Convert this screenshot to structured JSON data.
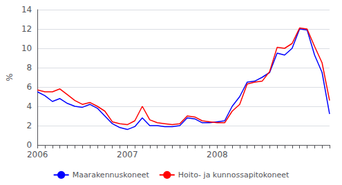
{
  "chart_data": {
    "type": "line",
    "ylabel": "%",
    "categories": [
      "2006",
      null,
      null,
      null,
      null,
      null,
      null,
      null,
      null,
      null,
      null,
      null,
      "2007",
      null,
      null,
      null,
      null,
      null,
      null,
      null,
      null,
      null,
      null,
      null,
      "2008",
      null,
      null,
      null,
      null,
      null,
      null,
      null,
      null,
      null,
      null,
      null,
      null,
      null,
      null,
      null
    ],
    "series": [
      {
        "name": "Maarakennuskoneet",
        "color": "#0000FF",
        "values": [
          5.5,
          5.1,
          4.5,
          4.8,
          4.3,
          4.0,
          3.9,
          4.2,
          3.8,
          3.0,
          2.2,
          1.8,
          1.6,
          1.9,
          2.8,
          2.0,
          2.0,
          1.9,
          1.9,
          2.0,
          2.8,
          2.7,
          2.3,
          2.3,
          2.4,
          2.5,
          4.0,
          5.0,
          6.5,
          6.6,
          7.0,
          7.5,
          9.5,
          9.3,
          10.0,
          12.0,
          11.9,
          9.3,
          7.5,
          3.2
        ]
      },
      {
        "name": "Hoito- ja kunnossapitokoneet",
        "color": "#FF0000",
        "values": [
          5.7,
          5.5,
          5.5,
          5.8,
          5.2,
          4.6,
          4.2,
          4.4,
          4.0,
          3.5,
          2.4,
          2.2,
          2.1,
          2.5,
          4.0,
          2.6,
          2.3,
          2.2,
          2.1,
          2.2,
          3.0,
          2.9,
          2.5,
          2.4,
          2.3,
          2.3,
          3.5,
          4.2,
          6.3,
          6.5,
          6.6,
          7.6,
          10.1,
          10.0,
          10.5,
          12.1,
          12.0,
          10.2,
          8.5,
          4.6
        ]
      }
    ],
    "ylim": [
      0,
      14
    ],
    "yticks": [
      0,
      2,
      4,
      6,
      8,
      10,
      12,
      14
    ],
    "grid": true,
    "legend": "bottom"
  }
}
